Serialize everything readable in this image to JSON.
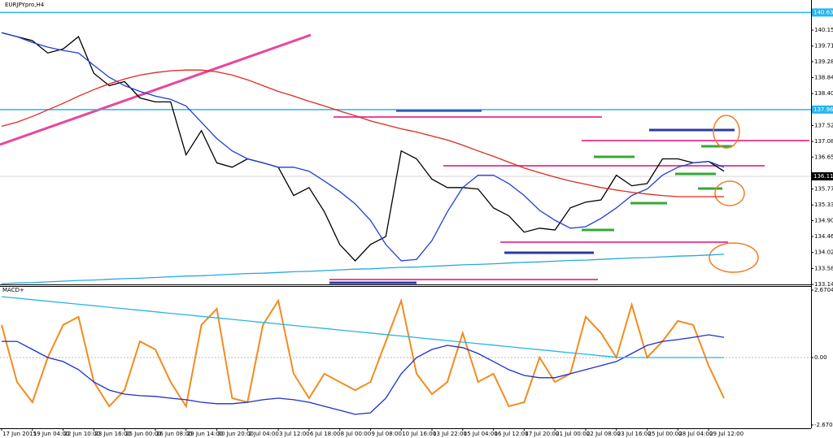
{
  "chart_data": [
    {
      "type": "line",
      "title": "EURJPYpro,H4",
      "categories": [
        "17 Jun 2015",
        null,
        "19 Jun 04:00",
        null,
        "22 Jun 10:00",
        null,
        "23 Jun 16:00",
        null,
        "25 Jun 00:00",
        null,
        "26 Jun 08:00",
        null,
        "29 Jun 14:00",
        null,
        "30 Jun 20:00",
        null,
        "2 Jul 04:00",
        null,
        "3 Jul 12:00",
        null,
        "6 Jul 18:00",
        null,
        "8 Jul 00:00",
        null,
        "9 Jul 08:00",
        null,
        "10 Jul 16:00",
        null,
        "13 Jul 22:00",
        null,
        "15 Jul 04:00",
        null,
        "16 Jul 12:00",
        null,
        "17 Jul 20:00",
        null,
        "21 Jul 00:00",
        null,
        "22 Jul 08:00",
        null,
        "23 Jul 16:00",
        null,
        "25 Jul 00:00",
        null,
        "28 Jul 04:00",
        null,
        "29 Jul 12:00",
        null
      ],
      "series": [
        {
          "color": "#000000",
          "values": [
            140.08,
            139.97,
            139.86,
            139.52,
            139.63,
            139.97,
            138.96,
            138.62,
            138.73,
            138.28,
            138.17,
            138.17,
            136.71,
            137.38,
            136.49,
            136.37,
            136.6,
            136.49,
            136.37,
            135.59,
            135.81,
            135.14,
            134.24,
            133.79,
            134.24,
            134.46,
            136.82,
            136.6,
            136.04,
            135.81,
            135.81,
            135.77,
            135.25,
            135.03,
            134.58,
            134.69,
            134.64,
            135.25,
            135.41,
            135.47,
            136.15,
            135.86,
            135.92,
            136.6,
            136.6,
            136.49,
            136.53,
            136.26
          ]
        },
        {
          "color": "#1f3fd6",
          "values": [
            140.08,
            139.97,
            139.81,
            139.68,
            139.59,
            139.52,
            139.18,
            138.85,
            138.62,
            138.46,
            138.33,
            138.24,
            138.06,
            137.61,
            137.16,
            136.82,
            136.6,
            136.49,
            136.37,
            136.37,
            136.26,
            135.99,
            135.7,
            135.36,
            134.91,
            134.24,
            133.79,
            133.83,
            134.35,
            135.14,
            135.81,
            136.15,
            136.15,
            135.92,
            135.59,
            135.18,
            134.91,
            134.69,
            134.73,
            134.96,
            135.25,
            135.59,
            135.77,
            136.15,
            136.37,
            136.49,
            136.53,
            136.37
          ]
        },
        {
          "color": "#e0281e",
          "values": [
            137.5,
            137.61,
            137.77,
            137.95,
            138.13,
            138.33,
            138.51,
            138.67,
            138.8,
            138.91,
            138.98,
            139.03,
            139.05,
            139.05,
            139.0,
            138.91,
            138.78,
            138.62,
            138.46,
            138.33,
            138.19,
            138.06,
            137.92,
            137.79,
            137.65,
            137.54,
            137.43,
            137.34,
            137.23,
            137.12,
            136.98,
            136.82,
            136.67,
            136.51,
            136.35,
            136.22,
            136.1,
            135.99,
            135.9,
            135.81,
            135.74,
            135.68,
            135.63,
            135.59,
            135.56,
            135.56,
            135.56,
            135.56
          ]
        },
        {
          "color": "#27a9e1",
          "values": [
            133.16,
            133.18,
            133.19,
            133.21,
            133.23,
            133.25,
            133.26,
            133.28,
            133.3,
            133.31,
            133.33,
            133.35,
            133.37,
            133.38,
            133.4,
            133.42,
            133.44,
            133.45,
            133.47,
            133.49,
            133.5,
            133.52,
            133.54,
            133.56,
            133.57,
            133.59,
            133.61,
            133.62,
            133.64,
            133.66,
            133.68,
            133.69,
            133.71,
            133.73,
            133.75,
            133.76,
            133.78,
            133.8,
            133.81,
            133.83,
            133.85,
            133.87,
            133.88,
            133.9,
            133.92,
            133.93,
            133.95,
            133.97
          ]
        }
      ],
      "ylim": [
        133.14,
        140.98
      ],
      "yticks": [
        {
          "value": 140.15,
          "label": "140.150"
        },
        {
          "value": 139.71,
          "label": "139.710"
        },
        {
          "value": 139.28,
          "label": "139.280"
        },
        {
          "value": 138.84,
          "label": "138.840"
        },
        {
          "value": 138.4,
          "label": "138.400"
        },
        {
          "value": 137.52,
          "label": "137.520"
        },
        {
          "value": 137.08,
          "label": "137.080"
        },
        {
          "value": 136.65,
          "label": "136.650"
        },
        {
          "value": 135.77,
          "label": "135.770"
        },
        {
          "value": 135.33,
          "label": "135.330"
        },
        {
          "value": 134.9,
          "label": "134.900"
        },
        {
          "value": 134.46,
          "label": "134.460"
        },
        {
          "value": 134.02,
          "label": "134.020"
        },
        {
          "value": 133.58,
          "label": "133.580"
        },
        {
          "value": 133.14,
          "label": "133.140"
        }
      ],
      "hlines": [
        {
          "value": 140.636,
          "label": "140.636",
          "color": "#27b4f0"
        },
        {
          "value": 137.96,
          "label": "137.960",
          "color": "#27b4f0"
        }
      ],
      "last_price": {
        "value": 136.119,
        "label": "136.119"
      }
    },
    {
      "type": "line",
      "title": "MACD+",
      "series": [
        {
          "color": "#f28c1e",
          "values": [
            1.29,
            -0.97,
            -1.77,
            0,
            1.29,
            1.61,
            -0.97,
            -1.93,
            -1.29,
            0.64,
            0.32,
            -0.97,
            -1.93,
            1.29,
            1.93,
            -1.61,
            -1.77,
            1.29,
            2.25,
            -0.64,
            -1.61,
            -0.64,
            -0.97,
            -1.29,
            -0.97,
            0.64,
            2.25,
            -0.64,
            -1.45,
            -0.97,
            0.97,
            -0.97,
            -0.64,
            -1.93,
            -1.77,
            0,
            -0.97,
            -0.64,
            1.61,
            0.97,
            0,
            2.09,
            0,
            0.64,
            1.45,
            1.29,
            -0.32,
            -1.61
          ]
        },
        {
          "color": "#1b2fd0",
          "values": [
            0.64,
            0.64,
            0.32,
            0,
            -0.16,
            -0.48,
            -0.97,
            -1.29,
            -1.45,
            -1.51,
            -1.54,
            -1.61,
            -1.67,
            -1.77,
            -1.83,
            -1.83,
            -1.77,
            -1.67,
            -1.61,
            -1.67,
            -1.77,
            -1.93,
            -2.09,
            -2.25,
            -2.19,
            -1.61,
            -0.64,
            0,
            0.32,
            0.48,
            0.39,
            0.16,
            -0.16,
            -0.48,
            -0.71,
            -0.8,
            -0.8,
            -0.64,
            -0.48,
            -0.32,
            -0.16,
            0.16,
            0.48,
            0.64,
            0.71,
            0.8,
            0.9,
            0.8
          ]
        },
        {
          "color": "#28b4e6",
          "values": [
            2.41,
            2.35,
            2.29,
            2.23,
            2.17,
            2.11,
            2.05,
            1.99,
            1.93,
            1.87,
            1.81,
            1.75,
            1.69,
            1.63,
            1.57,
            1.51,
            1.45,
            1.39,
            1.33,
            1.27,
            1.21,
            1.15,
            1.09,
            1.03,
            0.97,
            0.91,
            0.85,
            0.79,
            0.73,
            0.67,
            0.61,
            0.55,
            0.49,
            0.43,
            0.37,
            0.31,
            0.25,
            0.19,
            0.13,
            0.07,
            0.01,
            0,
            0,
            0,
            0,
            0,
            0,
            0
          ]
        }
      ],
      "ylim": [
        -2.8,
        2.83
      ],
      "yticks": [
        {
          "value": 2.6704,
          "label": "2.6704"
        },
        {
          "value": 0,
          "label": "0.00"
        },
        {
          "value": -2.6704,
          "label": "-2.6704"
        }
      ]
    }
  ]
}
